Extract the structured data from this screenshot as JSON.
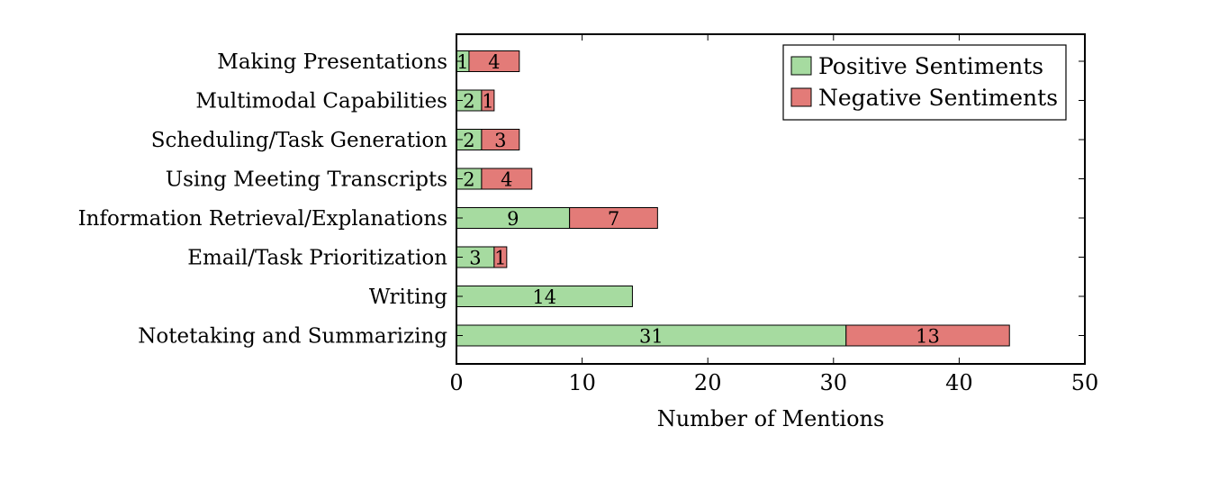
{
  "chart_data": {
    "type": "bar",
    "orientation": "horizontal",
    "stacked": true,
    "categories": [
      "Making Presentations",
      "Multimodal Capabilities",
      "Scheduling/Task Generation",
      "Using Meeting Transcripts",
      "Information Retrieval/Explanations",
      "Email/Task Prioritization",
      "Writing",
      "Notetaking and Summarizing"
    ],
    "series": [
      {
        "name": "Positive Sentiments",
        "color": "#a6dba0",
        "values": [
          1,
          2,
          2,
          2,
          9,
          3,
          14,
          31
        ]
      },
      {
        "name": "Negative Sentiments",
        "color": "#e37b78",
        "values": [
          4,
          1,
          3,
          4,
          7,
          1,
          0,
          13
        ]
      }
    ],
    "xlabel": "Number of Mentions",
    "xlim": [
      0,
      50
    ],
    "xticks": [
      0,
      10,
      20,
      30,
      40,
      50
    ],
    "grid": false,
    "legend_position": "top-right"
  }
}
